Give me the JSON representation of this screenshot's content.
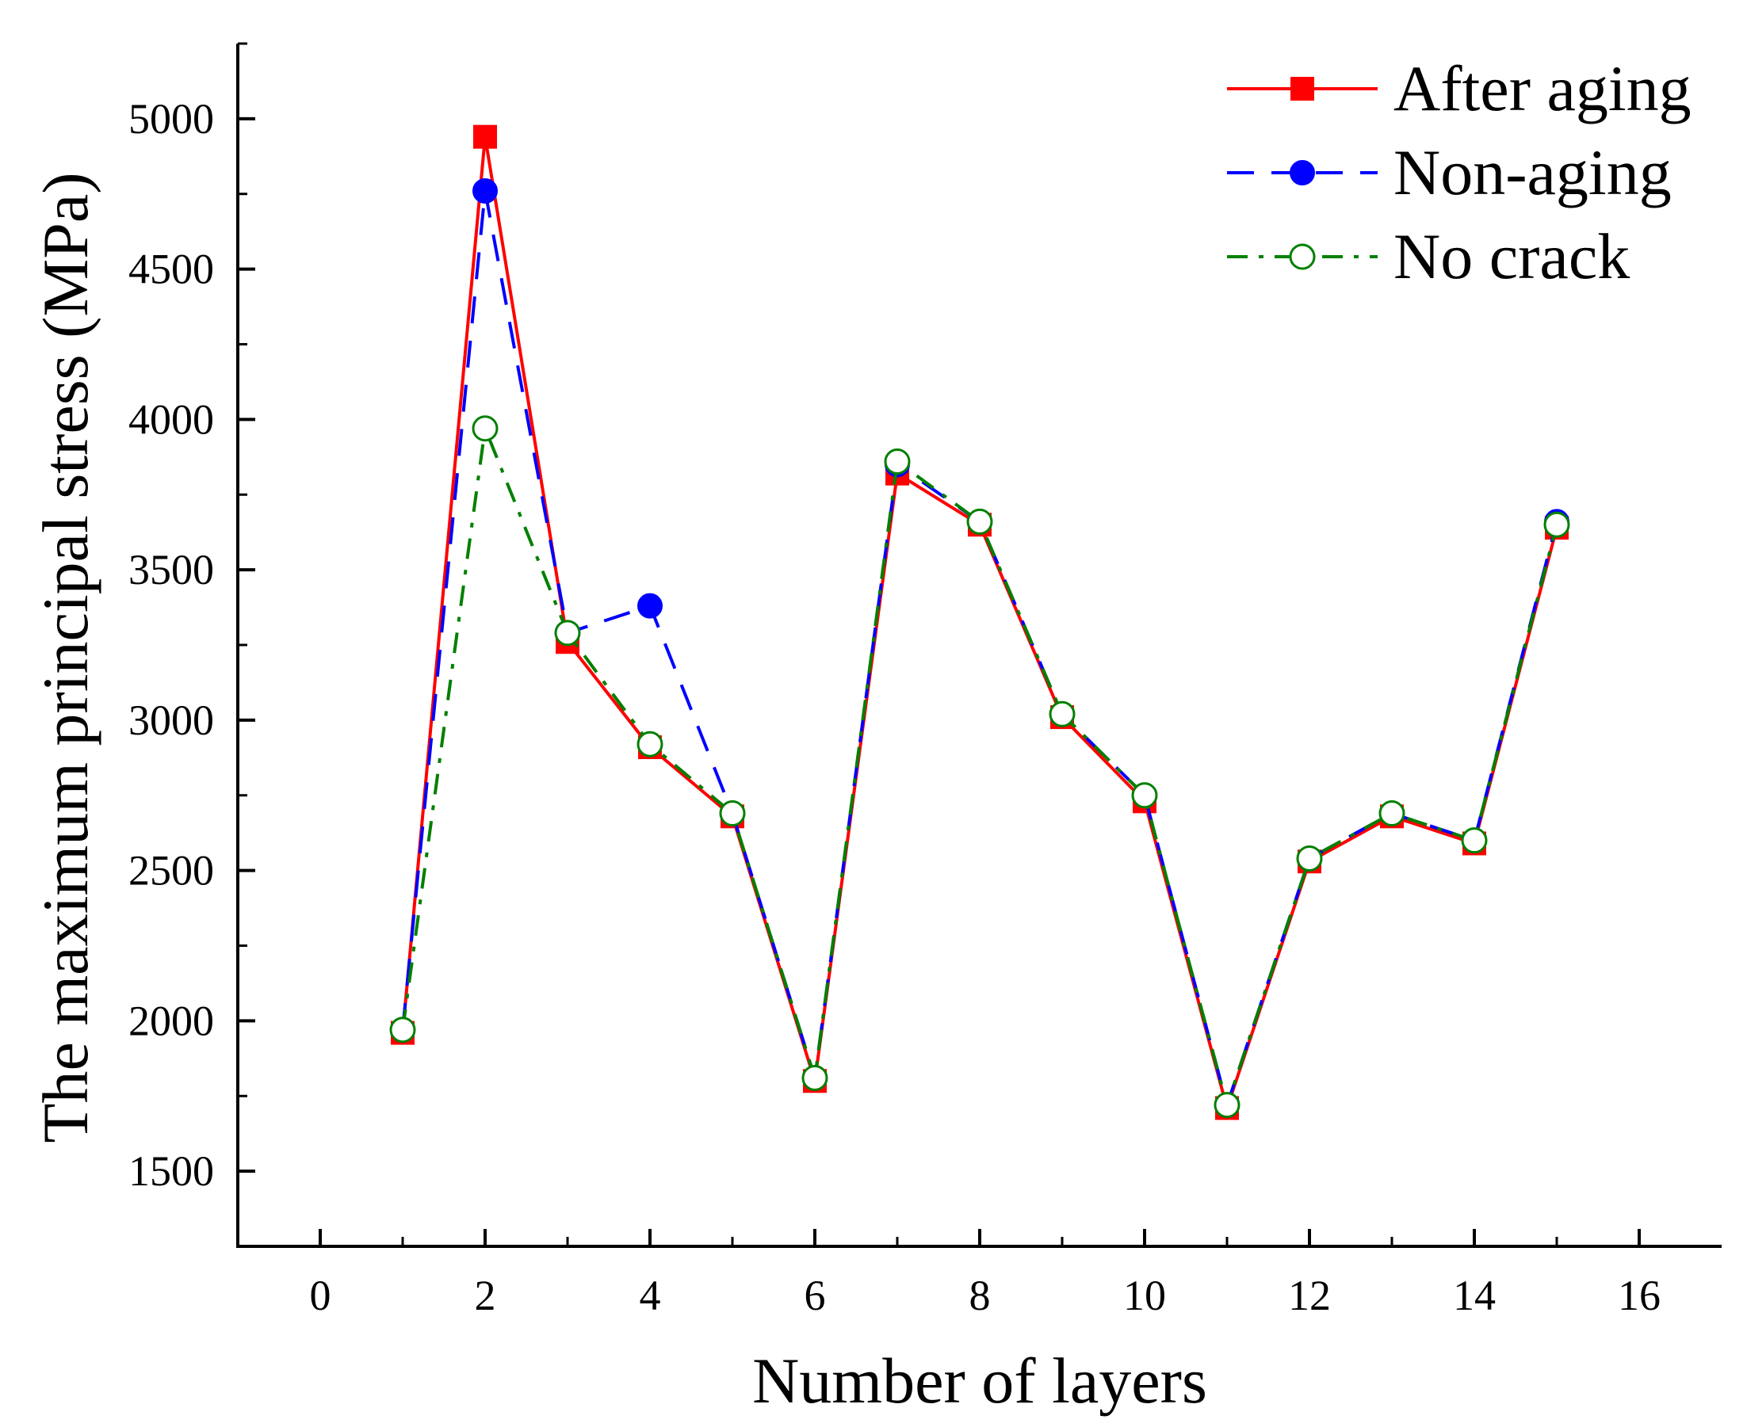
{
  "chart_data": {
    "type": "line",
    "title": "",
    "xlabel": "Number of layers",
    "ylabel": "The maximum principal stress (MPa)",
    "xlim": [
      -1,
      17
    ],
    "ylim": [
      1250,
      5250
    ],
    "xticks": [
      "0",
      "2",
      "4",
      "6",
      "8",
      "10",
      "12",
      "14",
      "16"
    ],
    "xtick_values": [
      0,
      2,
      4,
      6,
      8,
      10,
      12,
      14,
      16
    ],
    "yticks": [
      "1500",
      "2000",
      "2500",
      "3000",
      "3500",
      "4000",
      "4500",
      "5000"
    ],
    "ytick_values": [
      1500,
      2000,
      2500,
      3000,
      3500,
      4000,
      4500,
      5000
    ],
    "x": [
      1,
      2,
      3,
      4,
      5,
      6,
      7,
      8,
      9,
      10,
      11,
      12,
      13,
      14,
      15
    ],
    "series": [
      {
        "name": "After aging",
        "color": "#ff0000",
        "line_style": "solid",
        "marker": "filled-square",
        "x": [
          1,
          2,
          3,
          4,
          5,
          6,
          7,
          8,
          9,
          10,
          11,
          12,
          13,
          14,
          15
        ],
        "values": [
          1960,
          4940,
          3260,
          2910,
          2680,
          1800,
          3820,
          3650,
          3010,
          2730,
          1710,
          2530,
          2680,
          2590,
          3640
        ]
      },
      {
        "name": "Non-aging",
        "color": "#0000ff",
        "line_style": "dashed",
        "marker": "filled-circle",
        "x": [
          1,
          2,
          3,
          4,
          5,
          6,
          7,
          8,
          9,
          10,
          11,
          12,
          13,
          14,
          15
        ],
        "values": [
          1970,
          4760,
          3290,
          3380,
          2690,
          1810,
          3850,
          3660,
          3020,
          2750,
          1720,
          2540,
          2690,
          2600,
          3660
        ]
      },
      {
        "name": "No crack",
        "color": "#008000",
        "line_style": "dash-dot",
        "marker": "open-circle",
        "x": [
          1,
          2,
          3,
          4,
          5,
          6,
          7,
          8,
          9,
          10,
          11,
          12,
          13,
          14,
          15
        ],
        "values": [
          1970,
          3970,
          3290,
          2920,
          2690,
          1810,
          3860,
          3660,
          3020,
          2750,
          1720,
          2540,
          2690,
          2600,
          3650
        ]
      }
    ],
    "legend_position": "top-right"
  }
}
